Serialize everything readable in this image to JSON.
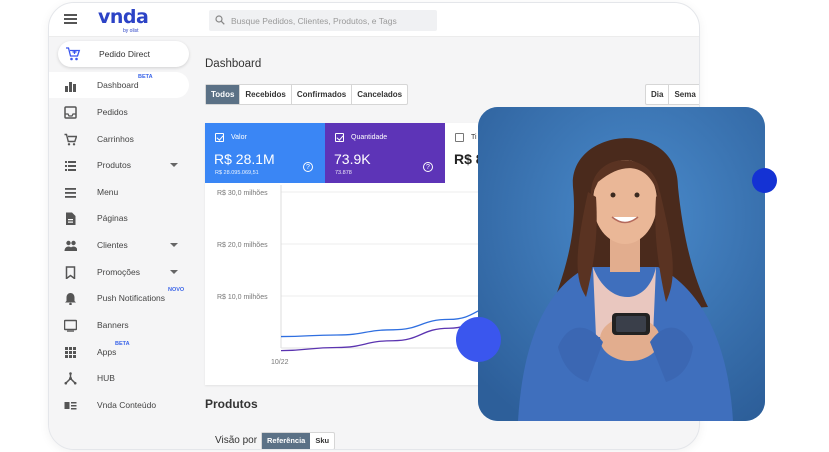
{
  "header": {
    "menu_icon": "hamburger-icon",
    "logo_text": "vnda",
    "logo_byline": "by olist",
    "search_placeholder": "Busque Pedidos, Clientes, Produtos, e Tags"
  },
  "sidebar": {
    "pedido_direct": {
      "label": "Pedido Direct",
      "icon": "cart-plus-icon"
    },
    "items": [
      {
        "label": "Dashboard",
        "icon": "bar-chart-icon",
        "tag": "BETA",
        "active": true,
        "caret": false
      },
      {
        "label": "Pedidos",
        "icon": "inbox-icon",
        "tag": "",
        "active": false,
        "caret": false
      },
      {
        "label": "Carrinhos",
        "icon": "cart-icon",
        "tag": "",
        "active": false,
        "caret": false
      },
      {
        "label": "Produtos",
        "icon": "list-icon",
        "tag": "",
        "active": false,
        "caret": true
      },
      {
        "label": "Menu",
        "icon": "menu-lines-icon",
        "tag": "",
        "active": false,
        "caret": false
      },
      {
        "label": "Páginas",
        "icon": "document-icon",
        "tag": "",
        "active": false,
        "caret": false
      },
      {
        "label": "Clientes",
        "icon": "people-icon",
        "tag": "",
        "active": false,
        "caret": true
      },
      {
        "label": "Promoções",
        "icon": "bookmark-icon",
        "tag": "",
        "active": false,
        "caret": true
      },
      {
        "label": "Push Notifications",
        "icon": "bell-icon",
        "tag": "NOVO",
        "active": false,
        "caret": false
      },
      {
        "label": "Banners",
        "icon": "monitor-icon",
        "tag": "",
        "active": false,
        "caret": false
      },
      {
        "label": "Apps",
        "icon": "apps-grid-icon",
        "tag": "BETA",
        "active": false,
        "caret": false
      },
      {
        "label": "HUB",
        "icon": "hub-icon",
        "tag": "",
        "active": false,
        "caret": false
      },
      {
        "label": "Vnda Conteúdo",
        "icon": "content-icon",
        "tag": "",
        "active": false,
        "caret": false
      }
    ]
  },
  "main": {
    "title": "Dashboard",
    "status_filters": [
      "Todos",
      "Recebidos",
      "Confirmados",
      "Cancelados"
    ],
    "selected_filter": "Todos",
    "period_filters": [
      "Dia",
      "Sema"
    ],
    "metrics": [
      {
        "label": "Valor",
        "value": "R$ 28.1M",
        "sub": "R$ 28.095.069,51",
        "color": "#3a86f5",
        "checked": true
      },
      {
        "label": "Quantidade",
        "value": "73.9K",
        "sub": "73.878",
        "color": "#5d34b7",
        "checked": true
      },
      {
        "label": "Ti",
        "value": "R$ 8",
        "sub": "",
        "color": "#ffffff",
        "checked": false
      }
    ],
    "products_title": "Produtos",
    "visao_label": "Visão por",
    "visao_options": [
      "Referência",
      "Sku"
    ],
    "visao_selected": "Referência"
  },
  "chart_data": {
    "type": "line",
    "y_ticks": [
      "R$ 30,0 milhões",
      "R$ 20,0 milhões",
      "R$ 10,0 milhões"
    ],
    "x_ticks": [
      "10/22"
    ],
    "ylim": [
      0,
      30
    ],
    "series": [
      {
        "name": "Valor",
        "color": "#2f6fe0",
        "x": [
          0,
          1,
          2,
          3,
          4
        ],
        "y": [
          2.2,
          2.5,
          3.5,
          5.5,
          8.5
        ]
      },
      {
        "name": "Quantidade",
        "color": "#5b34b0",
        "x": [
          0,
          1,
          2,
          3,
          4
        ],
        "y": [
          -0.5,
          0.1,
          1.4,
          3.8,
          7.2
        ]
      }
    ]
  },
  "decor": {
    "photo_alt": "woman-holding-phone-photo"
  }
}
